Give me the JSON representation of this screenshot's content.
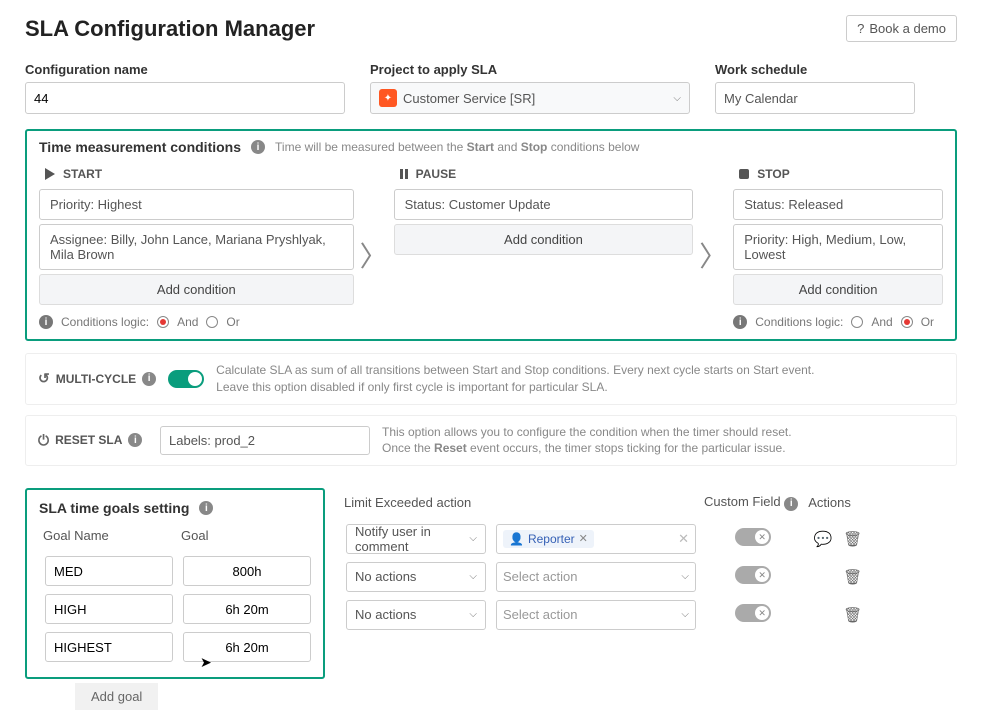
{
  "header": {
    "title": "SLA Configuration Manager",
    "book_demo": "Book a demo"
  },
  "fields": {
    "config_name_label": "Configuration name",
    "config_name_value": "44",
    "project_label": "Project to apply SLA",
    "project_value": "Customer Service [SR]",
    "schedule_label": "Work schedule",
    "schedule_value": "My Calendar"
  },
  "time_conditions": {
    "section_title": "Time measurement conditions",
    "hint_a": "Time will be measured between the ",
    "hint_b": "Start",
    "hint_c": " and ",
    "hint_d": "Stop",
    "hint_e": " conditions below",
    "start_label": "START",
    "pause_label": "PAUSE",
    "stop_label": "STOP",
    "start_conditions": [
      "Priority: Highest",
      "Assignee: Billy, John Lance, Mariana Pryshlyak, Mila Brown"
    ],
    "pause_conditions": [
      "Status: Customer Update"
    ],
    "stop_conditions": [
      "Status: Released",
      "Priority: High, Medium, Low, Lowest"
    ],
    "add_condition": "Add condition",
    "logic_label": "Conditions logic:",
    "and_label": "And",
    "or_label": "Or"
  },
  "multi_cycle": {
    "label": "MULTI-CYCLE",
    "desc1": "Calculate SLA as sum of all transitions between Start and Stop conditions. Every next cycle starts on Start event.",
    "desc2": "Leave this option disabled if only first cycle is important for particular SLA."
  },
  "reset_sla": {
    "label": "RESET SLA",
    "value": "Labels: prod_2",
    "desc1": "This option allows you to configure the condition when the timer should reset.",
    "desc2a": "Once the ",
    "desc2b": "Reset",
    "desc2c": " event occurs, the timer stops ticking for the particular issue."
  },
  "goals": {
    "section_title": "SLA time goals setting",
    "col_goal_name": "Goal Name",
    "col_goal": "Goal",
    "col_limit": "Limit Exceeded action",
    "col_custom": "Custom Field",
    "col_actions": "Actions",
    "rows": [
      {
        "name": "MED",
        "goal": "800h",
        "action": "Notify user in comment",
        "tag": "Reporter",
        "has_tag": true,
        "has_comment_icon": true
      },
      {
        "name": "HIGH",
        "goal": "6h 20m",
        "action": "No actions",
        "tag": "Select action",
        "has_tag": false,
        "has_comment_icon": false
      },
      {
        "name": "HIGHEST",
        "goal": "6h 20m",
        "action": "No actions",
        "tag": "Select action",
        "has_tag": false,
        "has_comment_icon": false
      }
    ],
    "add_goal": "Add goal",
    "select_placeholder": "Select action"
  }
}
